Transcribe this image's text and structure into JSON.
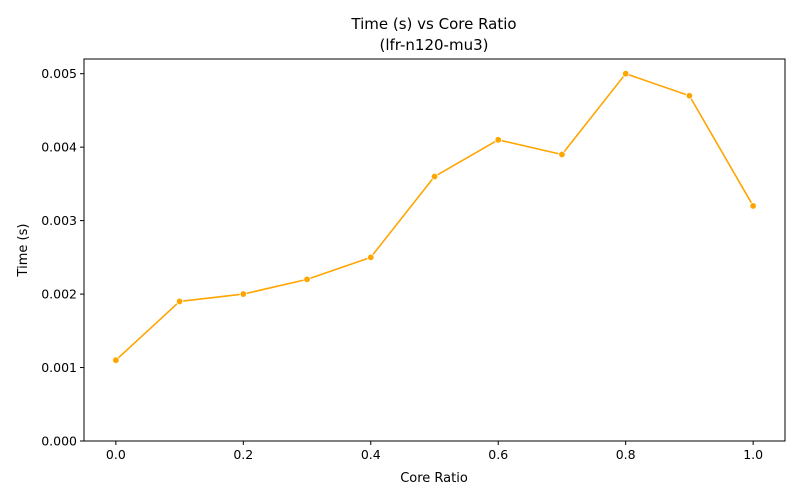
{
  "chart_data": {
    "type": "line",
    "title": "Time (s) vs Core Ratio",
    "subtitle": "(lfr-n120-mu3)",
    "xlabel": "Core Ratio",
    "ylabel": "Time (s)",
    "xlim": [
      -0.05,
      1.05
    ],
    "ylim": [
      0,
      0.0052
    ],
    "xticks": [
      0.0,
      0.2,
      0.4,
      0.6,
      0.8,
      1.0
    ],
    "xtick_labels": [
      "0.0",
      "0.2",
      "0.4",
      "0.6",
      "0.8",
      "1.0"
    ],
    "yticks": [
      0,
      0.001,
      0.002,
      0.003,
      0.004,
      0.005
    ],
    "ytick_labels": [
      "0.000",
      "0.001",
      "0.002",
      "0.003",
      "0.004",
      "0.005"
    ],
    "grid": false,
    "color": "#FFA500",
    "series": [
      {
        "x": [
          0.0,
          0.1,
          0.2,
          0.3,
          0.4,
          0.5,
          0.6,
          0.7,
          0.8,
          0.9,
          1.0
        ],
        "y": [
          0.0011,
          0.0019,
          0.002,
          0.0022,
          0.0025,
          0.0036,
          0.0041,
          0.0039,
          0.005,
          0.0047,
          0.0032
        ]
      }
    ]
  }
}
